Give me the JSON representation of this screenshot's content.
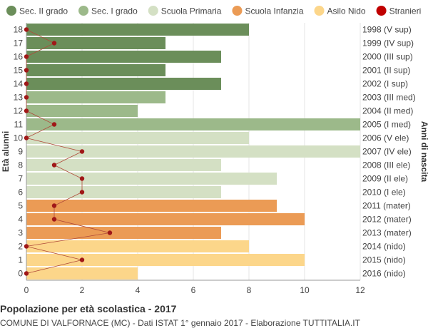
{
  "chart_data": {
    "type": "bar",
    "orientation": "horizontal",
    "title": "Popolazione per età scolastica - 2017",
    "subtitle": "COMUNE DI VALFORNACE (MC) - Dati ISTAT 1° gennaio 2017 - Elaborazione TUTTITALIA.IT",
    "ylabel_left": "Età alunni",
    "ylabel_right": "Anni di nascita",
    "xlim": [
      0,
      12
    ],
    "x_ticks": [
      "0",
      "2",
      "4",
      "6",
      "8",
      "10",
      "12"
    ],
    "grid": true,
    "legend_position": "top",
    "legend": [
      {
        "label": "Sec. II grado",
        "color": "#6b8e5a"
      },
      {
        "label": "Sec. I grado",
        "color": "#9cb98a"
      },
      {
        "label": "Scuola Primaria",
        "color": "#d4e0c4"
      },
      {
        "label": "Scuola Infanzia",
        "color": "#eb9b55"
      },
      {
        "label": "Asilo Nido",
        "color": "#fcd68a"
      },
      {
        "label": "Stranieri",
        "color": "#c00000"
      }
    ],
    "rows": [
      {
        "age": "18",
        "year": "1998 (V sup)",
        "value": 8,
        "stranieri": 0,
        "group": 0
      },
      {
        "age": "17",
        "year": "1999 (IV sup)",
        "value": 5,
        "stranieri": 1,
        "group": 0
      },
      {
        "age": "16",
        "year": "2000 (III sup)",
        "value": 7,
        "stranieri": 0,
        "group": 0
      },
      {
        "age": "15",
        "year": "2001 (II sup)",
        "value": 5,
        "stranieri": 0,
        "group": 0
      },
      {
        "age": "14",
        "year": "2002 (I sup)",
        "value": 7,
        "stranieri": 0,
        "group": 0
      },
      {
        "age": "13",
        "year": "2003 (III med)",
        "value": 5,
        "stranieri": 0,
        "group": 1
      },
      {
        "age": "12",
        "year": "2004 (II med)",
        "value": 4,
        "stranieri": 0,
        "group": 1
      },
      {
        "age": "11",
        "year": "2005 (I med)",
        "value": 12,
        "stranieri": 1,
        "group": 1
      },
      {
        "age": "10",
        "year": "2006 (V ele)",
        "value": 8,
        "stranieri": 0,
        "group": 2
      },
      {
        "age": "9",
        "year": "2007 (IV ele)",
        "value": 12,
        "stranieri": 2,
        "group": 2
      },
      {
        "age": "8",
        "year": "2008 (III ele)",
        "value": 7,
        "stranieri": 1,
        "group": 2
      },
      {
        "age": "7",
        "year": "2009 (II ele)",
        "value": 9,
        "stranieri": 2,
        "group": 2
      },
      {
        "age": "6",
        "year": "2010 (I ele)",
        "value": 7,
        "stranieri": 2,
        "group": 2
      },
      {
        "age": "5",
        "year": "2011 (mater)",
        "value": 9,
        "stranieri": 1,
        "group": 3
      },
      {
        "age": "4",
        "year": "2012 (mater)",
        "value": 10,
        "stranieri": 1,
        "group": 3
      },
      {
        "age": "3",
        "year": "2013 (mater)",
        "value": 7,
        "stranieri": 3,
        "group": 3
      },
      {
        "age": "2",
        "year": "2014 (nido)",
        "value": 8,
        "stranieri": 0,
        "group": 4
      },
      {
        "age": "1",
        "year": "2015 (nido)",
        "value": 10,
        "stranieri": 2,
        "group": 4
      },
      {
        "age": "0",
        "year": "2016 (nido)",
        "value": 4,
        "stranieri": 0,
        "group": 4
      }
    ]
  }
}
